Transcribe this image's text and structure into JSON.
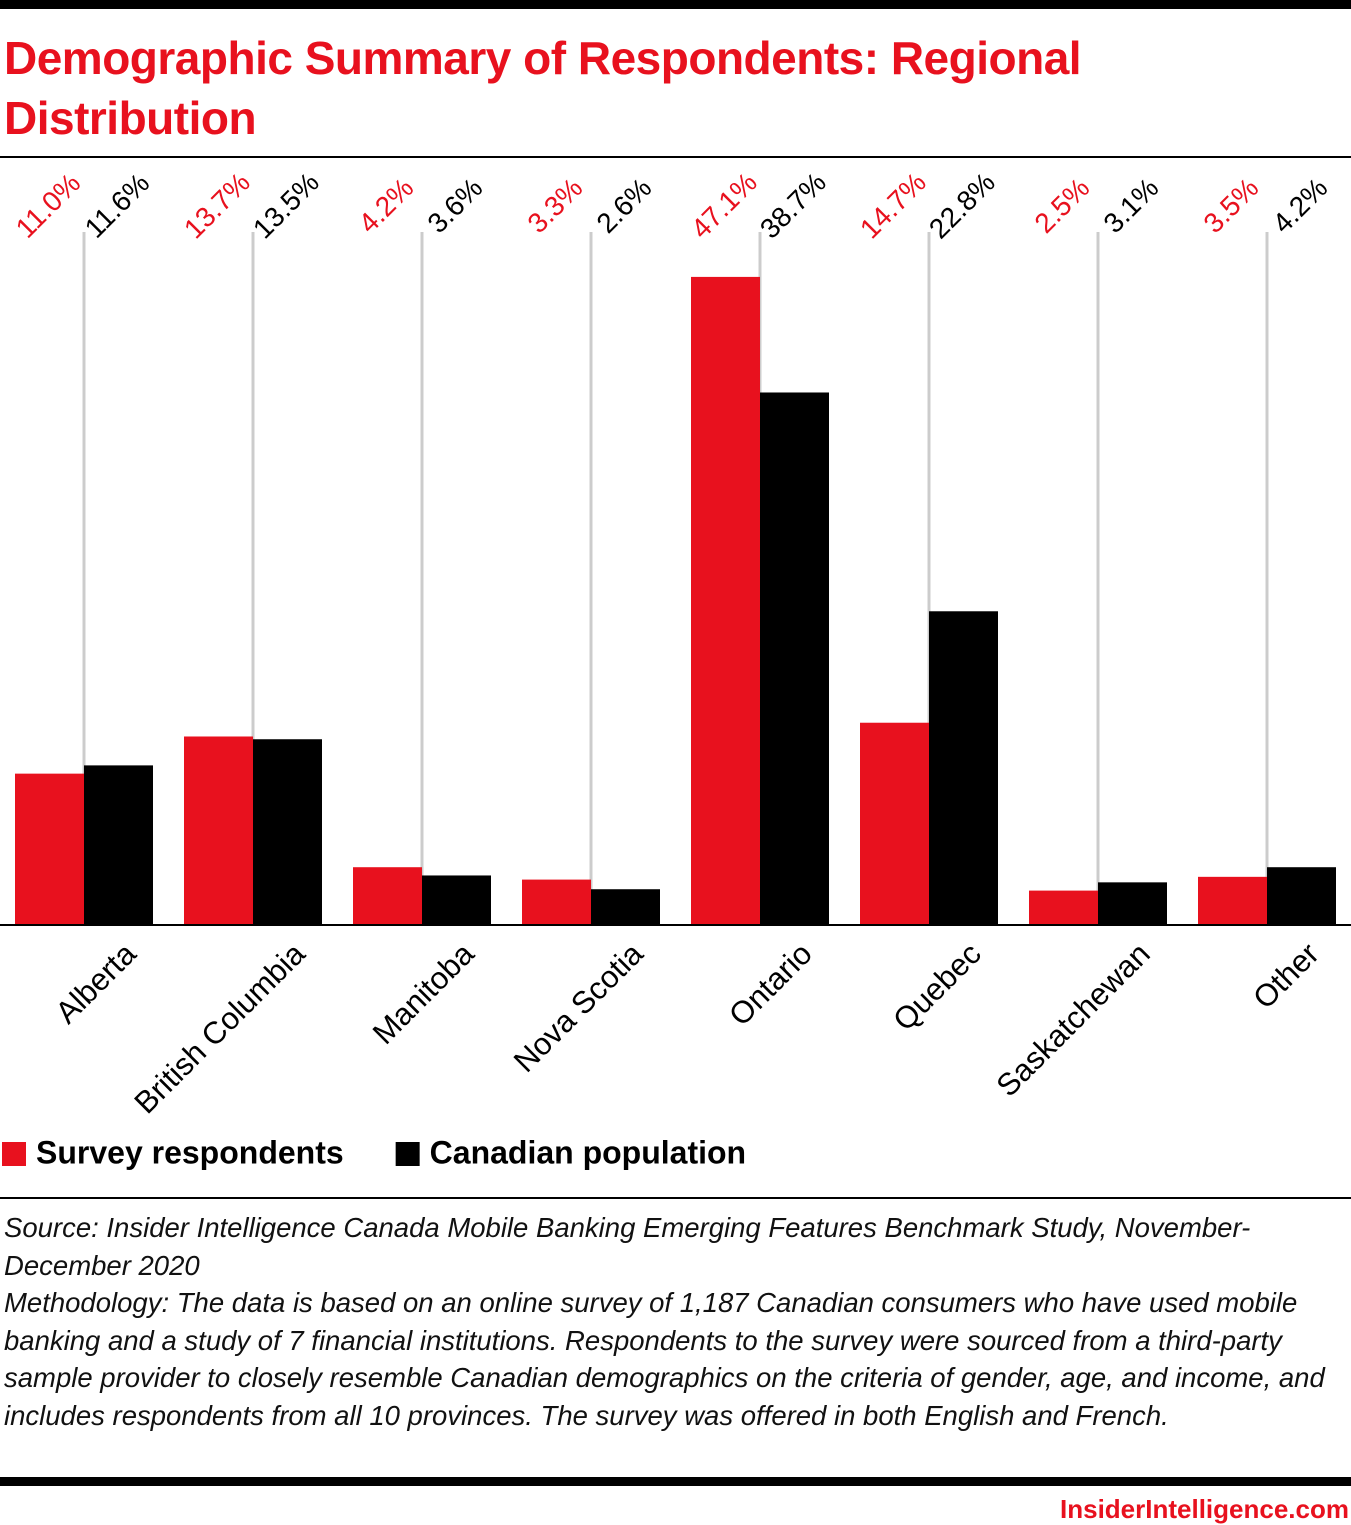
{
  "chart_data": {
    "type": "bar",
    "title": "Demographic Summary of Respondents: Regional Distribution",
    "categories": [
      "Alberta",
      "British Columbia",
      "Manitoba",
      "Nova Scotia",
      "Ontario",
      "Quebec",
      "Saskatchewan",
      "Other"
    ],
    "series": [
      {
        "name": "Survey respondents",
        "color": "#e8111e",
        "values": [
          11.0,
          13.7,
          4.2,
          3.3,
          47.1,
          14.7,
          2.5,
          3.5
        ],
        "value_labels": [
          "11.0%",
          "13.7%",
          "4.2%",
          "3.3%",
          "47.1%",
          "14.7%",
          "2.5%",
          "3.5%"
        ]
      },
      {
        "name": "Canadian population",
        "color": "#000000",
        "values": [
          11.6,
          13.5,
          3.6,
          2.6,
          38.7,
          22.8,
          3.1,
          4.2
        ],
        "value_labels": [
          "11.6%",
          "13.5%",
          "3.6%",
          "2.6%",
          "38.7%",
          "22.8%",
          "3.1%",
          "4.2%"
        ]
      }
    ],
    "ylim": [
      0,
      50
    ]
  },
  "source": "Source: Insider Intelligence Canada Mobile Banking Emerging Features Benchmark Study, November-December 2020",
  "methodology": "Methodology: The data is based on an online survey of 1,187 Canadian consumers who have used mobile banking and a study of 7 financial institutions. Respondents to the survey were sourced from a third-party sample provider to closely resemble Canadian demographics on the criteria of gender, age, and income, and includes respondents from all 10 provinces. The survey was offered in both English and French.",
  "brand": "InsiderIntelligence.com"
}
